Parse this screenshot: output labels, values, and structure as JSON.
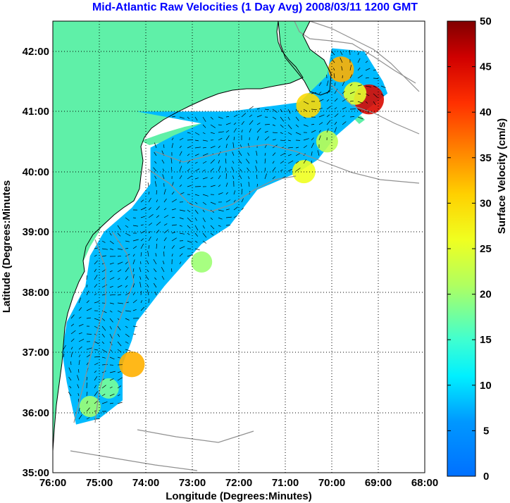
{
  "map": {
    "title": "Mid-Atlantic Raw Velocities (1 Day Avg) 2008/03/11 1200 GMT",
    "xlabel": "Longitude (Degrees:Minutes)",
    "ylabel": "Latitude (Degrees:Minutes",
    "x_ticks": [
      "76:00",
      "75:00",
      "74:00",
      "73:00",
      "72:00",
      "71:00",
      "70:00",
      "69:00",
      "68:00"
    ],
    "y_ticks": [
      "42:00",
      "41:00",
      "40:00",
      "39:00",
      "38:00",
      "37:00",
      "36:00",
      "35:00"
    ],
    "colors": {
      "title": "#0000ff",
      "land": "#5ff0a8",
      "coast": "#000000",
      "bathymetry": "#909090",
      "grid": "#000000"
    }
  },
  "colorbar": {
    "label": "Surface Velocity (cm/s)",
    "ticks": [
      "50",
      "45",
      "40",
      "35",
      "30",
      "25",
      "20",
      "15",
      "10",
      "5",
      "0"
    ],
    "range": [
      0,
      50
    ],
    "colormap": "jet"
  },
  "chart_data": {
    "type": "heatmap",
    "title": "Mid-Atlantic Raw Velocities (1 Day Avg) 2008/03/11 1200 GMT",
    "xlabel": "Longitude (Degrees:Minutes)",
    "ylabel": "Latitude (Degrees:Minutes",
    "xlim": [
      -76,
      -68
    ],
    "ylim": [
      35,
      42.5
    ],
    "clim": [
      0,
      50
    ],
    "units": "cm/s",
    "coverage_polygon": [
      [
        -74.2,
        41.0
      ],
      [
        -72.2,
        41.0
      ],
      [
        -70.7,
        41.15
      ],
      [
        -70.1,
        41.6
      ],
      [
        -70.0,
        42.05
      ],
      [
        -69.3,
        42.0
      ],
      [
        -68.9,
        41.5
      ],
      [
        -68.8,
        41.3
      ],
      [
        -69.3,
        41.0
      ],
      [
        -69.9,
        40.6
      ],
      [
        -70.3,
        40.2
      ],
      [
        -70.7,
        40.0
      ],
      [
        -71.6,
        39.7
      ],
      [
        -72.2,
        39.1
      ],
      [
        -72.8,
        38.8
      ],
      [
        -73.6,
        38.1
      ],
      [
        -74.0,
        37.7
      ],
      [
        -74.2,
        37.5
      ],
      [
        -74.3,
        37.2
      ],
      [
        -74.5,
        36.8
      ],
      [
        -74.5,
        36.2
      ],
      [
        -75.0,
        35.9
      ],
      [
        -75.5,
        35.8
      ],
      [
        -75.7,
        36.5
      ],
      [
        -75.8,
        37.0
      ],
      [
        -75.7,
        37.5
      ],
      [
        -75.3,
        38.1
      ],
      [
        -75.2,
        38.6
      ],
      [
        -74.9,
        39.0
      ],
      [
        -74.3,
        39.4
      ],
      [
        -73.9,
        39.8
      ],
      [
        -73.9,
        40.4
      ],
      [
        -73.4,
        40.6
      ],
      [
        -72.8,
        40.8
      ]
    ],
    "high_velocity_regions": [
      {
        "lon": -69.2,
        "lat": 41.2,
        "value": 45
      },
      {
        "lon": -69.8,
        "lat": 41.7,
        "value": 33
      },
      {
        "lon": -70.5,
        "lat": 41.1,
        "value": 30
      },
      {
        "lon": -69.5,
        "lat": 41.3,
        "value": 25
      },
      {
        "lon": -70.1,
        "lat": 40.5,
        "value": 22
      },
      {
        "lon": -70.6,
        "lat": 40.0,
        "value": 26
      },
      {
        "lon": -74.3,
        "lat": 36.8,
        "value": 33
      },
      {
        "lon": -72.8,
        "lat": 38.5,
        "value": 20
      },
      {
        "lon": -75.2,
        "lat": 36.1,
        "value": 20
      },
      {
        "lon": -74.8,
        "lat": 36.4,
        "value": 18
      }
    ],
    "background_value": 8
  }
}
